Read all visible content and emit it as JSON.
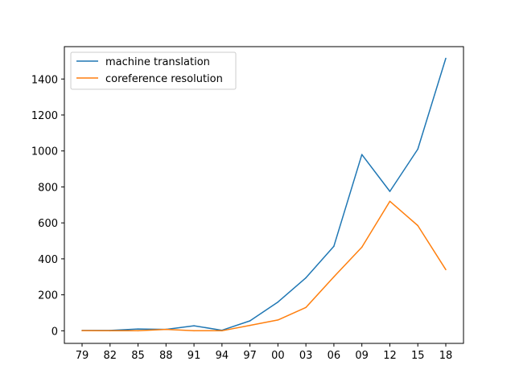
{
  "chart_data": {
    "type": "line",
    "title": "",
    "xlabel": "",
    "ylabel": "",
    "categories": [
      "79",
      "82",
      "85",
      "88",
      "91",
      "94",
      "97",
      "00",
      "03",
      "06",
      "09",
      "12",
      "15",
      "18"
    ],
    "ylim": [
      -70,
      1580
    ],
    "yticks": [
      0,
      200,
      400,
      600,
      800,
      1000,
      1200,
      1400
    ],
    "grid": false,
    "legend_position": "top-left",
    "series": [
      {
        "name": "machine translation",
        "color": "#1f77b4",
        "values": [
          2,
          2,
          10,
          8,
          28,
          3,
          55,
          160,
          295,
          470,
          980,
          775,
          1010,
          1515
        ]
      },
      {
        "name": "coreference resolution",
        "color": "#ff7f0e",
        "values": [
          1,
          0,
          0,
          8,
          0,
          0,
          30,
          60,
          130,
          300,
          465,
          720,
          585,
          340
        ]
      }
    ]
  }
}
